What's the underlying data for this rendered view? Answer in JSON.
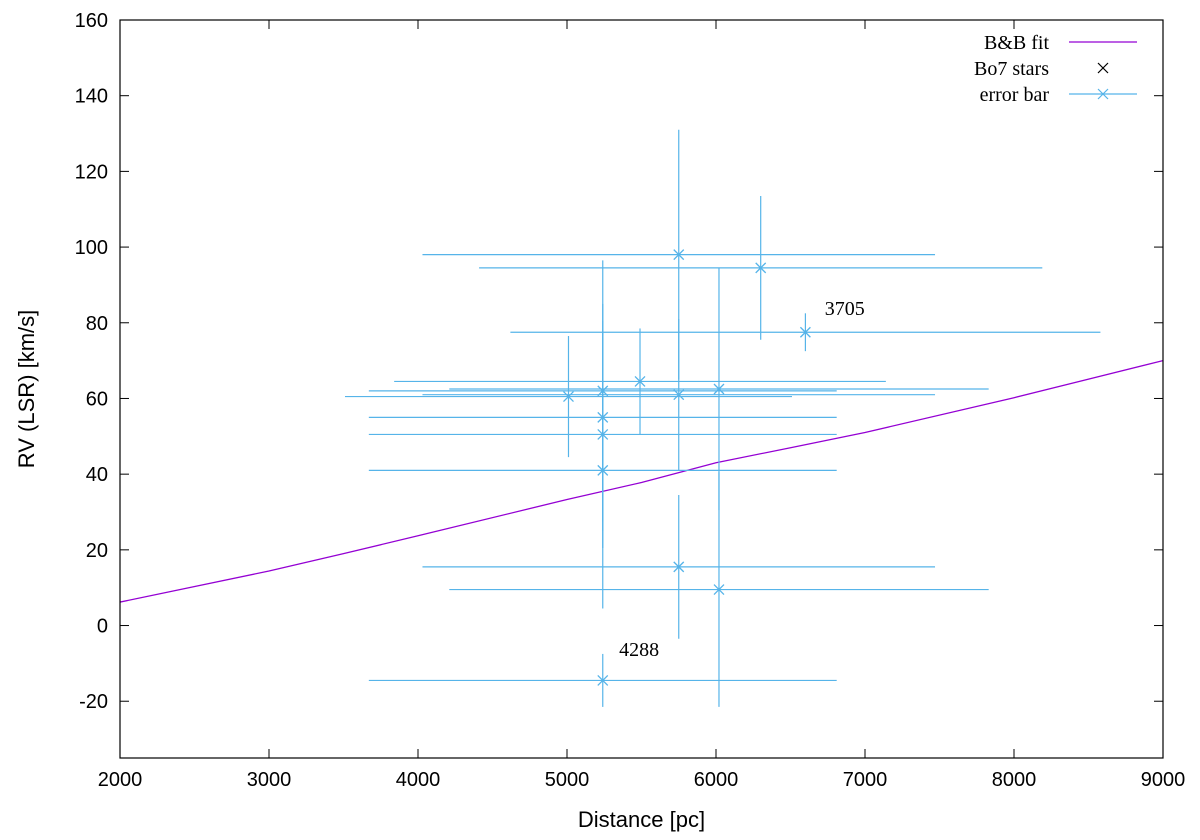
{
  "chart_data": {
    "type": "scatter",
    "xlabel": "Distance [pc]",
    "ylabel": "RV (LSR) [km/s]",
    "xlim": [
      2000,
      9000
    ],
    "ylim": [
      -35,
      160
    ],
    "xticks": [
      2000,
      3000,
      4000,
      5000,
      6000,
      7000,
      8000,
      9000
    ],
    "yticks": [
      -20,
      0,
      20,
      40,
      60,
      80,
      100,
      120,
      140,
      160
    ],
    "grid": false,
    "legend_position": "top-right",
    "legend": [
      {
        "label": "B&B fit",
        "kind": "line",
        "color": "#9400d3"
      },
      {
        "label": "Bo7 stars",
        "kind": "cross",
        "color": "#000000"
      },
      {
        "label": "error bar",
        "kind": "errorbar",
        "color": "#56b4e9"
      }
    ],
    "series": [
      {
        "name": "B&B fit",
        "type": "line",
        "color": "#9400d3",
        "x": [
          2000,
          3000,
          3500,
          4000,
          5000,
          5500,
          6000,
          6500,
          7000,
          8000,
          9000
        ],
        "y": [
          6.2,
          14.4,
          19.0,
          23.7,
          33.3,
          37.8,
          43.0,
          47.0,
          51.0,
          60.2,
          70.0
        ]
      },
      {
        "name": "error bar",
        "type": "errorbar",
        "color": "#56b4e9",
        "points": [
          {
            "x": 5750,
            "y": 98,
            "xmin": 4030,
            "xmax": 7470,
            "ymin": 65,
            "ymax": 131
          },
          {
            "x": 6300,
            "y": 94.5,
            "xmin": 4410,
            "xmax": 8190,
            "ymin": 75.5,
            "ymax": 113.5
          },
          {
            "x": 6600,
            "y": 77.5,
            "xmin": 4620,
            "xmax": 8580,
            "ymin": 72.5,
            "ymax": 82.5
          },
          {
            "x": 5490,
            "y": 64.5,
            "xmin": 3840,
            "xmax": 7140,
            "ymin": 50.5,
            "ymax": 78.5
          },
          {
            "x": 5240,
            "y": 62,
            "xmin": 3670,
            "xmax": 6810,
            "ymin": 27.5,
            "ymax": 96.5
          },
          {
            "x": 6020,
            "y": 62.5,
            "xmin": 4210,
            "xmax": 7830,
            "ymin": 30.5,
            "ymax": 94.5
          },
          {
            "x": 5750,
            "y": 61,
            "xmin": 4030,
            "xmax": 7470,
            "ymin": 41,
            "ymax": 81
          },
          {
            "x": 5010,
            "y": 60.5,
            "xmin": 3510,
            "xmax": 6510,
            "ymin": 44.5,
            "ymax": 76.5
          },
          {
            "x": 5240,
            "y": 55,
            "xmin": 3670,
            "xmax": 6810,
            "ymin": 25,
            "ymax": 85
          },
          {
            "x": 5240,
            "y": 50.5,
            "xmin": 3670,
            "xmax": 6810,
            "ymin": 20.5,
            "ymax": 80.5
          },
          {
            "x": 5240,
            "y": 41,
            "xmin": 3670,
            "xmax": 6810,
            "ymin": 4.5,
            "ymax": 77.5
          },
          {
            "x": 5750,
            "y": 15.5,
            "xmin": 4030,
            "xmax": 7470,
            "ymin": -3.5,
            "ymax": 34.5
          },
          {
            "x": 6020,
            "y": 9.5,
            "xmin": 4210,
            "xmax": 7830,
            "ymin": -21.5,
            "ymax": 40.5
          },
          {
            "x": 5240,
            "y": -14.5,
            "xmin": 3670,
            "xmax": 6810,
            "ymin": -21.5,
            "ymax": -7.5
          }
        ]
      }
    ],
    "annotations": [
      {
        "text": "3705",
        "x": 6730,
        "y": 82
      },
      {
        "text": "4288",
        "x": 5350,
        "y": -8
      }
    ]
  }
}
